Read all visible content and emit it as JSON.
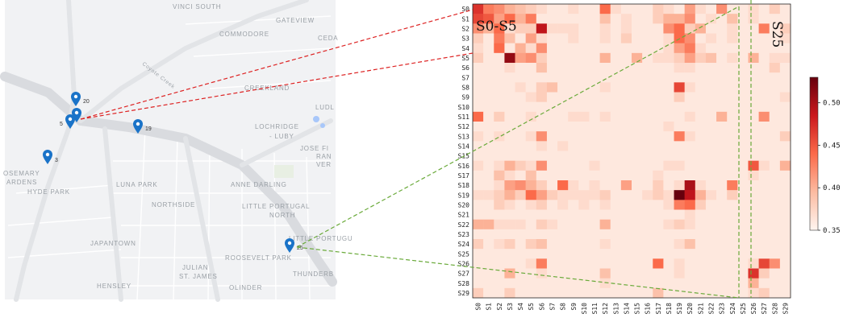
{
  "map": {
    "labels": [
      {
        "text": "VINCI SOUTH"
      },
      {
        "text": "GATEVIEW"
      },
      {
        "text": "COMMODORE"
      },
      {
        "text": "CEDA"
      },
      {
        "text": "Coyote Creek"
      },
      {
        "text": "CREEKLAND"
      },
      {
        "text": "LUDL"
      },
      {
        "text": "LOCHRIDGE"
      },
      {
        "text": "- LUBY"
      },
      {
        "text": "JOSE FI"
      },
      {
        "text": "RAN"
      },
      {
        "text": "VER"
      },
      {
        "text": "OSEMARY"
      },
      {
        "text": "ARDENS"
      },
      {
        "text": "HYDE PARK"
      },
      {
        "text": "LUNA PARK"
      },
      {
        "text": "NORTHSIDE"
      },
      {
        "text": "ANNE DARLING"
      },
      {
        "text": "LITTLE PORTUGAL"
      },
      {
        "text": "NORTH"
      },
      {
        "text": "LITTLE PORTUGU"
      },
      {
        "text": "JAPANTOWN"
      },
      {
        "text": "ROOSEVELT PARK"
      },
      {
        "text": "JULIAN"
      },
      {
        "text": "ST. JAMES"
      },
      {
        "text": "HENSLEY"
      },
      {
        "text": "OLINDER"
      },
      {
        "text": "THUNDERB"
      }
    ],
    "sensors": [
      {
        "id": "20"
      },
      {
        "id": "5"
      },
      {
        "id": "19"
      },
      {
        "id": "3"
      },
      {
        "id": "25"
      }
    ],
    "pin_color": "#1a73c8"
  },
  "chart_data": {
    "type": "heatmap",
    "rows": [
      "S0",
      "S1",
      "S2",
      "S3",
      "S4",
      "S5",
      "S6",
      "S7",
      "S8",
      "S9",
      "S10",
      "S11",
      "S12",
      "S13",
      "S14",
      "S15",
      "S16",
      "S17",
      "S18",
      "S19",
      "S20",
      "S21",
      "S22",
      "S23",
      "S24",
      "S25",
      "S26",
      "S27",
      "S28",
      "S29"
    ],
    "cols": [
      "S0",
      "S1",
      "S2",
      "S3",
      "S4",
      "S5",
      "S6",
      "S7",
      "S8",
      "S9",
      "S10",
      "S11",
      "S12",
      "S13",
      "S14",
      "S15",
      "S16",
      "S17",
      "S18",
      "S19",
      "S20",
      "S21",
      "S22",
      "S23",
      "S24",
      "S25",
      "S26",
      "S27",
      "S28",
      "S29"
    ],
    "colorbar": {
      "min": 0.35,
      "max": 0.53,
      "ticks": [
        "0.35",
        "0.40",
        "0.45",
        "0.50"
      ]
    },
    "colormap": [
      "#fff5f0",
      "#fcbba1",
      "#fb6a4a",
      "#cb181d",
      "#67000d"
    ],
    "annotations": {
      "group_label": "S0-S5",
      "sensor_label": "S25"
    },
    "link_colors": {
      "group": "#dd2222",
      "sensor": "#6aaa3a"
    },
    "values": [
      [
        0.47,
        0.43,
        0.42,
        0.4,
        0.39,
        0.38,
        0.37,
        0.36,
        0.36,
        0.37,
        0.36,
        0.36,
        0.44,
        0.37,
        0.36,
        0.36,
        0.36,
        0.38,
        0.37,
        0.36,
        0.41,
        0.37,
        0.36,
        0.42,
        0.36,
        0.36,
        0.37,
        0.36,
        0.38,
        0.36
      ],
      [
        0.46,
        0.45,
        0.41,
        0.44,
        0.4,
        0.43,
        0.36,
        0.36,
        0.36,
        0.36,
        0.36,
        0.36,
        0.39,
        0.36,
        0.37,
        0.36,
        0.36,
        0.38,
        0.4,
        0.4,
        0.42,
        0.36,
        0.37,
        0.36,
        0.39,
        0.36,
        0.37,
        0.36,
        0.36,
        0.36
      ],
      [
        0.42,
        0.4,
        0.44,
        0.37,
        0.38,
        0.38,
        0.49,
        0.37,
        0.37,
        0.37,
        0.36,
        0.36,
        0.37,
        0.36,
        0.37,
        0.36,
        0.36,
        0.36,
        0.42,
        0.44,
        0.38,
        0.4,
        0.36,
        0.36,
        0.37,
        0.36,
        0.36,
        0.43,
        0.36,
        0.38
      ],
      [
        0.38,
        0.36,
        0.43,
        0.39,
        0.36,
        0.41,
        0.37,
        0.36,
        0.36,
        0.37,
        0.36,
        0.36,
        0.37,
        0.36,
        0.38,
        0.36,
        0.36,
        0.36,
        0.37,
        0.44,
        0.42,
        0.36,
        0.37,
        0.36,
        0.37,
        0.36,
        0.36,
        0.36,
        0.36,
        0.37
      ],
      [
        0.37,
        0.36,
        0.44,
        0.36,
        0.4,
        0.37,
        0.42,
        0.36,
        0.36,
        0.36,
        0.36,
        0.36,
        0.36,
        0.36,
        0.36,
        0.36,
        0.36,
        0.36,
        0.37,
        0.41,
        0.43,
        0.37,
        0.36,
        0.36,
        0.36,
        0.36,
        0.36,
        0.36,
        0.36,
        0.36
      ],
      [
        0.38,
        0.36,
        0.36,
        0.51,
        0.41,
        0.42,
        0.38,
        0.36,
        0.36,
        0.36,
        0.36,
        0.36,
        0.4,
        0.36,
        0.36,
        0.4,
        0.36,
        0.37,
        0.37,
        0.38,
        0.41,
        0.38,
        0.39,
        0.36,
        0.37,
        0.36,
        0.4,
        0.36,
        0.37,
        0.37
      ],
      [
        0.36,
        0.36,
        0.36,
        0.37,
        0.36,
        0.36,
        0.39,
        0.36,
        0.36,
        0.36,
        0.36,
        0.36,
        0.36,
        0.36,
        0.36,
        0.36,
        0.36,
        0.36,
        0.36,
        0.37,
        0.37,
        0.36,
        0.36,
        0.36,
        0.36,
        0.36,
        0.36,
        0.36,
        0.38,
        0.36
      ],
      [
        0.36,
        0.36,
        0.36,
        0.36,
        0.36,
        0.36,
        0.36,
        0.36,
        0.36,
        0.36,
        0.36,
        0.36,
        0.36,
        0.36,
        0.36,
        0.36,
        0.36,
        0.36,
        0.36,
        0.36,
        0.36,
        0.36,
        0.36,
        0.36,
        0.36,
        0.36,
        0.36,
        0.36,
        0.36,
        0.36
      ],
      [
        0.36,
        0.36,
        0.36,
        0.36,
        0.37,
        0.36,
        0.38,
        0.39,
        0.36,
        0.36,
        0.36,
        0.36,
        0.37,
        0.36,
        0.36,
        0.36,
        0.36,
        0.36,
        0.36,
        0.46,
        0.37,
        0.36,
        0.36,
        0.36,
        0.36,
        0.36,
        0.36,
        0.36,
        0.36,
        0.36
      ],
      [
        0.36,
        0.36,
        0.36,
        0.36,
        0.36,
        0.37,
        0.38,
        0.36,
        0.36,
        0.36,
        0.36,
        0.36,
        0.36,
        0.36,
        0.36,
        0.36,
        0.36,
        0.36,
        0.36,
        0.38,
        0.36,
        0.36,
        0.36,
        0.36,
        0.36,
        0.36,
        0.36,
        0.36,
        0.36,
        0.37
      ],
      [
        0.36,
        0.36,
        0.36,
        0.36,
        0.36,
        0.36,
        0.36,
        0.36,
        0.36,
        0.36,
        0.36,
        0.36,
        0.36,
        0.36,
        0.36,
        0.36,
        0.36,
        0.36,
        0.36,
        0.36,
        0.36,
        0.36,
        0.36,
        0.36,
        0.36,
        0.36,
        0.36,
        0.36,
        0.36,
        0.36
      ],
      [
        0.44,
        0.36,
        0.38,
        0.36,
        0.36,
        0.37,
        0.36,
        0.36,
        0.36,
        0.37,
        0.37,
        0.36,
        0.37,
        0.36,
        0.36,
        0.36,
        0.36,
        0.36,
        0.36,
        0.36,
        0.37,
        0.36,
        0.36,
        0.4,
        0.36,
        0.36,
        0.36,
        0.42,
        0.36,
        0.36
      ],
      [
        0.36,
        0.36,
        0.36,
        0.36,
        0.36,
        0.36,
        0.36,
        0.36,
        0.36,
        0.36,
        0.36,
        0.36,
        0.36,
        0.36,
        0.36,
        0.36,
        0.36,
        0.36,
        0.37,
        0.36,
        0.36,
        0.36,
        0.36,
        0.36,
        0.36,
        0.36,
        0.36,
        0.36,
        0.36,
        0.36
      ],
      [
        0.37,
        0.36,
        0.37,
        0.36,
        0.36,
        0.37,
        0.42,
        0.36,
        0.36,
        0.36,
        0.36,
        0.36,
        0.36,
        0.36,
        0.36,
        0.36,
        0.36,
        0.36,
        0.36,
        0.43,
        0.37,
        0.36,
        0.36,
        0.36,
        0.36,
        0.36,
        0.36,
        0.36,
        0.36,
        0.38
      ],
      [
        0.36,
        0.36,
        0.36,
        0.36,
        0.36,
        0.36,
        0.37,
        0.36,
        0.37,
        0.36,
        0.36,
        0.36,
        0.36,
        0.36,
        0.36,
        0.36,
        0.36,
        0.36,
        0.36,
        0.36,
        0.36,
        0.36,
        0.36,
        0.36,
        0.36,
        0.36,
        0.36,
        0.36,
        0.36,
        0.36
      ],
      [
        0.36,
        0.36,
        0.36,
        0.36,
        0.36,
        0.36,
        0.36,
        0.36,
        0.36,
        0.36,
        0.36,
        0.36,
        0.36,
        0.36,
        0.36,
        0.36,
        0.36,
        0.36,
        0.36,
        0.36,
        0.36,
        0.36,
        0.36,
        0.36,
        0.36,
        0.36,
        0.36,
        0.36,
        0.36,
        0.36
      ],
      [
        0.37,
        0.36,
        0.37,
        0.4,
        0.38,
        0.37,
        0.42,
        0.36,
        0.36,
        0.36,
        0.36,
        0.37,
        0.36,
        0.36,
        0.36,
        0.36,
        0.36,
        0.36,
        0.37,
        0.37,
        0.36,
        0.36,
        0.36,
        0.36,
        0.36,
        0.36,
        0.45,
        0.37,
        0.36,
        0.4
      ],
      [
        0.36,
        0.36,
        0.39,
        0.37,
        0.36,
        0.39,
        0.36,
        0.36,
        0.36,
        0.36,
        0.36,
        0.36,
        0.36,
        0.36,
        0.36,
        0.36,
        0.36,
        0.37,
        0.36,
        0.36,
        0.36,
        0.36,
        0.36,
        0.36,
        0.36,
        0.36,
        0.37,
        0.36,
        0.36,
        0.36
      ],
      [
        0.36,
        0.36,
        0.37,
        0.41,
        0.42,
        0.4,
        0.38,
        0.36,
        0.44,
        0.37,
        0.36,
        0.37,
        0.36,
        0.36,
        0.41,
        0.36,
        0.36,
        0.38,
        0.36,
        0.37,
        0.5,
        0.37,
        0.36,
        0.36,
        0.43,
        0.36,
        0.36,
        0.36,
        0.36,
        0.36
      ],
      [
        0.37,
        0.37,
        0.38,
        0.4,
        0.38,
        0.44,
        0.41,
        0.38,
        0.37,
        0.37,
        0.37,
        0.37,
        0.38,
        0.36,
        0.36,
        0.36,
        0.37,
        0.38,
        0.37,
        0.53,
        0.49,
        0.4,
        0.37,
        0.36,
        0.38,
        0.36,
        0.36,
        0.36,
        0.36,
        0.36
      ],
      [
        0.36,
        0.36,
        0.38,
        0.37,
        0.36,
        0.37,
        0.38,
        0.36,
        0.37,
        0.36,
        0.37,
        0.36,
        0.37,
        0.36,
        0.36,
        0.36,
        0.36,
        0.36,
        0.37,
        0.43,
        0.44,
        0.38,
        0.36,
        0.36,
        0.36,
        0.36,
        0.36,
        0.36,
        0.36,
        0.36
      ],
      [
        0.36,
        0.36,
        0.36,
        0.36,
        0.36,
        0.36,
        0.36,
        0.36,
        0.36,
        0.36,
        0.36,
        0.36,
        0.36,
        0.36,
        0.36,
        0.36,
        0.36,
        0.36,
        0.36,
        0.36,
        0.37,
        0.36,
        0.36,
        0.36,
        0.36,
        0.36,
        0.36,
        0.36,
        0.36,
        0.36
      ],
      [
        0.4,
        0.4,
        0.37,
        0.37,
        0.37,
        0.36,
        0.38,
        0.37,
        0.36,
        0.36,
        0.36,
        0.36,
        0.4,
        0.36,
        0.36,
        0.36,
        0.36,
        0.36,
        0.37,
        0.38,
        0.37,
        0.36,
        0.36,
        0.36,
        0.36,
        0.36,
        0.36,
        0.36,
        0.36,
        0.36
      ],
      [
        0.36,
        0.36,
        0.36,
        0.36,
        0.36,
        0.36,
        0.36,
        0.36,
        0.36,
        0.36,
        0.36,
        0.36,
        0.36,
        0.36,
        0.36,
        0.36,
        0.36,
        0.36,
        0.36,
        0.36,
        0.36,
        0.36,
        0.36,
        0.36,
        0.36,
        0.36,
        0.36,
        0.36,
        0.36,
        0.36
      ],
      [
        0.38,
        0.36,
        0.37,
        0.38,
        0.36,
        0.38,
        0.39,
        0.36,
        0.36,
        0.36,
        0.36,
        0.36,
        0.37,
        0.36,
        0.36,
        0.36,
        0.36,
        0.36,
        0.36,
        0.37,
        0.39,
        0.36,
        0.36,
        0.36,
        0.36,
        0.36,
        0.36,
        0.36,
        0.36,
        0.36
      ],
      [
        0.36,
        0.36,
        0.36,
        0.36,
        0.36,
        0.36,
        0.36,
        0.36,
        0.36,
        0.36,
        0.36,
        0.36,
        0.36,
        0.36,
        0.36,
        0.36,
        0.36,
        0.36,
        0.36,
        0.36,
        0.36,
        0.36,
        0.36,
        0.36,
        0.36,
        0.36,
        0.36,
        0.36,
        0.36,
        0.36
      ],
      [
        0.36,
        0.36,
        0.36,
        0.36,
        0.36,
        0.37,
        0.43,
        0.36,
        0.36,
        0.36,
        0.36,
        0.36,
        0.36,
        0.36,
        0.36,
        0.36,
        0.36,
        0.44,
        0.36,
        0.37,
        0.36,
        0.36,
        0.36,
        0.36,
        0.36,
        0.36,
        0.37,
        0.46,
        0.42,
        0.36
      ],
      [
        0.36,
        0.36,
        0.36,
        0.4,
        0.36,
        0.36,
        0.37,
        0.36,
        0.36,
        0.36,
        0.36,
        0.36,
        0.39,
        0.36,
        0.36,
        0.36,
        0.36,
        0.36,
        0.36,
        0.37,
        0.36,
        0.36,
        0.36,
        0.36,
        0.36,
        0.36,
        0.47,
        0.38,
        0.36,
        0.36
      ],
      [
        0.36,
        0.36,
        0.36,
        0.36,
        0.36,
        0.36,
        0.36,
        0.36,
        0.36,
        0.36,
        0.36,
        0.36,
        0.37,
        0.36,
        0.36,
        0.36,
        0.36,
        0.36,
        0.36,
        0.36,
        0.36,
        0.36,
        0.36,
        0.36,
        0.36,
        0.36,
        0.4,
        0.36,
        0.36,
        0.36
      ],
      [
        0.38,
        0.36,
        0.36,
        0.38,
        0.36,
        0.36,
        0.36,
        0.36,
        0.36,
        0.36,
        0.36,
        0.36,
        0.36,
        0.36,
        0.36,
        0.36,
        0.36,
        0.39,
        0.36,
        0.36,
        0.36,
        0.36,
        0.36,
        0.36,
        0.36,
        0.36,
        0.37,
        0.38,
        0.36,
        0.36
      ]
    ]
  }
}
